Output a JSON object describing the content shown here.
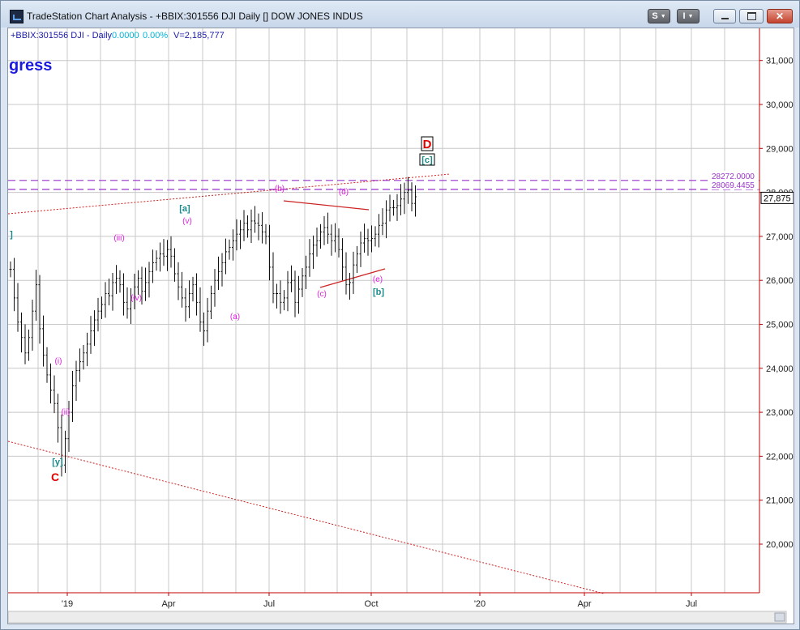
{
  "window": {
    "title": "TradeStation Chart Analysis - +BBIX:301556 DJI Daily [] DOW JONES INDUS",
    "btn_s": "S",
    "btn_i": "I"
  },
  "header": {
    "symbol": "+BBIX:301556 DJI - Daily",
    "change": "0.0000",
    "change_pct": "0.00%",
    "volume": "V=2,185,777"
  },
  "overlay_text": "gress",
  "colors": {
    "up_down_text": "#00b4d8",
    "header_text": "#1a1aa8",
    "axis": "#c00000",
    "grid": "#c8c8c8",
    "wave_magenta": "#e020e0",
    "wave_teal": "#1a8a8a",
    "wave_red": "#e00000",
    "resistance": "#9933cc"
  },
  "chart_data": {
    "type": "ohlc",
    "y_axis": {
      "min": 19300,
      "max": 31800,
      "ticks": [
        "31,000",
        "30,000",
        "29,000",
        "28,000",
        "27,000",
        "26,000",
        "25,000",
        "24,000",
        "23,000",
        "22,000",
        "21,000",
        "20,000"
      ],
      "tick_values": [
        31000,
        30000,
        29000,
        28000,
        27000,
        26000,
        25000,
        24000,
        23000,
        22000,
        21000,
        20000
      ]
    },
    "x_axis": {
      "labels": [
        "'19",
        "Apr",
        "Jul",
        "Oct",
        "'20",
        "Apr",
        "Jul"
      ]
    },
    "last_price": "27,875",
    "resistance_levels": [
      {
        "label": "28272.0000",
        "value": 28272
      },
      {
        "label": "28069.4455",
        "value": 28069
      }
    ],
    "closes": [
      26250,
      25600,
      25050,
      24700,
      24350,
      24700,
      25300,
      25900,
      24900,
      24300,
      23850,
      23500,
      23200,
      22650,
      21800,
      22400,
      23000,
      23600,
      23950,
      24150,
      24350,
      24550,
      24850,
      25100,
      25300,
      25450,
      25700,
      25650,
      25950,
      26050,
      25900,
      25500,
      25350,
      25600,
      25850,
      26050,
      25750,
      25950,
      26200,
      26400,
      26500,
      26600,
      26550,
      26700,
      26550,
      26150,
      25850,
      25600,
      25400,
      25700,
      25900,
      25500,
      25050,
      24850,
      25300,
      25700,
      26000,
      26200,
      26400,
      26650,
      26750,
      26900,
      27050,
      27150,
      27300,
      27150,
      27350,
      27300,
      27250,
      27100,
      27000,
      26300,
      25700,
      25700,
      25500,
      25600,
      25950,
      26000,
      25500,
      25800,
      26100,
      26300,
      26600,
      26800,
      26900,
      27100,
      27200,
      27050,
      26900,
      27000,
      26700,
      26300,
      25900,
      25950,
      26350,
      26600,
      26850,
      26950,
      26900,
      26950,
      27050,
      27250,
      27300,
      27600,
      27650,
      27650,
      27700,
      27850,
      28000,
      28050,
      27750,
      27900
    ]
  },
  "wave_labels": [
    {
      "text": "[a]",
      "color": "teal",
      "value": 27200
    },
    {
      "text": "(v)",
      "color": "magenta",
      "value": 27000
    },
    {
      "text": "(iii)",
      "color": "magenta",
      "value": 26500
    },
    {
      "text": "(iv)",
      "color": "magenta",
      "value": 25050
    },
    {
      "text": "(a)",
      "color": "magenta",
      "value": 24600
    },
    {
      "text": "(b)",
      "color": "magenta",
      "value": 27650
    },
    {
      "text": "(c)",
      "color": "magenta",
      "value": 25100
    },
    {
      "text": "(d)",
      "color": "magenta",
      "value": 27550
    },
    {
      "text": "(e)",
      "color": "magenta",
      "value": 25350
    },
    {
      "text": "[b]",
      "color": "teal",
      "value": 25050
    },
    {
      "text": "[c]",
      "color": "teal",
      "value": 28500
    },
    {
      "text": "D",
      "color": "red",
      "value": 28800
    },
    {
      "text": "(i)",
      "color": "magenta",
      "value": 23600
    },
    {
      "text": "(ii)",
      "color": "magenta",
      "value": 22500
    },
    {
      "text": "[y]",
      "color": "teal",
      "value": 21350
    },
    {
      "text": "C",
      "color": "red",
      "value": 20950
    },
    {
      "text": "]",
      "color": "teal",
      "value": 26400
    }
  ]
}
